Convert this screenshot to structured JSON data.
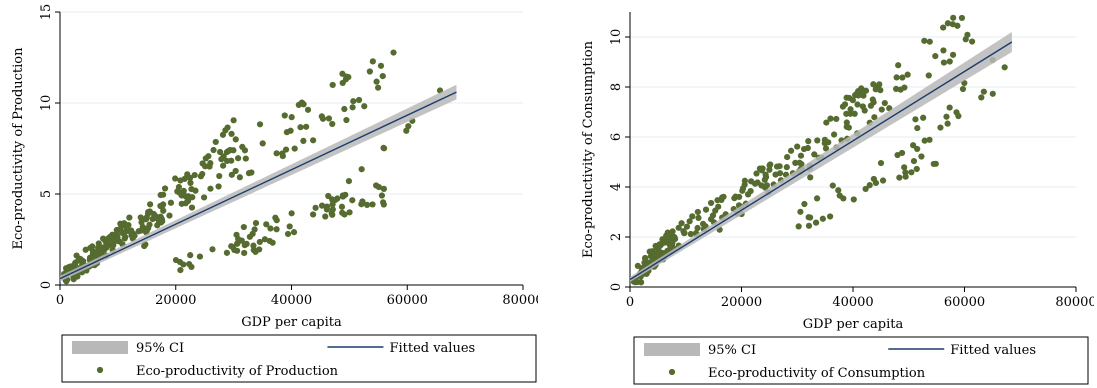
{
  "chart_data": [
    {
      "type": "scatter",
      "xlabel": "GDP per capita",
      "ylabel": "Eco-productivity of Production",
      "xlim": [
        0,
        80000
      ],
      "ylim": [
        0,
        15
      ],
      "x_ticks": [
        "0",
        "20000",
        "40000",
        "60000",
        "80000"
      ],
      "y_ticks": [
        "0",
        "5",
        "10",
        "15"
      ],
      "grid": true,
      "legend_position": "bottom",
      "legend": {
        "ci_label": "95% CI",
        "fit_label": "Fitted values",
        "scatter_label": "Eco-productivity of Production"
      },
      "fit": {
        "x": [
          0,
          68500
        ],
        "y": [
          0.35,
          10.6
        ]
      },
      "ci_band": {
        "x": [
          0,
          68500
        ],
        "upper": [
          0.5,
          11.0
        ],
        "lower": [
          0.2,
          10.2
        ]
      },
      "clusters": [
        {
          "x": [
            500,
            8000
          ],
          "y": [
            0.3,
            2.0
          ],
          "n": 70
        },
        {
          "x": [
            1000,
            12000
          ],
          "y": [
            0.8,
            3.2
          ],
          "n": 40
        },
        {
          "x": [
            8000,
            18000
          ],
          "y": [
            2.2,
            4.0
          ],
          "n": 45
        },
        {
          "x": [
            14000,
            30000
          ],
          "y": [
            3.0,
            8.0
          ],
          "n": 55
        },
        {
          "x": [
            22000,
            58000
          ],
          "y": [
            5.0,
            12.0
          ],
          "n": 70
        },
        {
          "x": [
            20000,
            38000
          ],
          "y": [
            1.1,
            2.5
          ],
          "n": 25
        },
        {
          "x": [
            30000,
            56000
          ],
          "y": [
            2.5,
            5.0
          ],
          "n": 45
        },
        {
          "x": [
            45000,
            68000
          ],
          "y": [
            4.0,
            10.3
          ],
          "n": 14
        }
      ],
      "colors": {
        "points": "#556b2f",
        "fit": "#1a3c6e",
        "ci": "#b8b8b8",
        "grid": "#e6eef3"
      }
    },
    {
      "type": "scatter",
      "xlabel": "GDP per capita",
      "ylabel": "Eco-productivity of Consumption",
      "xlim": [
        0,
        80000
      ],
      "ylim": [
        0,
        11
      ],
      "x_ticks": [
        "0",
        "20000",
        "40000",
        "60000",
        "80000"
      ],
      "y_ticks": [
        "0",
        "2",
        "4",
        "6",
        "8",
        "10"
      ],
      "grid": true,
      "legend_position": "bottom",
      "legend": {
        "ci_label": "95% CI",
        "fit_label": "Fitted values",
        "scatter_label": "Eco-productivity of Consumption"
      },
      "fit": {
        "x": [
          0,
          68500
        ],
        "y": [
          0.3,
          9.8
        ]
      },
      "ci_band": {
        "x": [
          0,
          68500
        ],
        "upper": [
          0.4,
          10.2
        ],
        "lower": [
          0.2,
          9.4
        ]
      },
      "clusters": [
        {
          "x": [
            500,
            8000
          ],
          "y": [
            0.3,
            2.0
          ],
          "n": 70
        },
        {
          "x": [
            4000,
            16000
          ],
          "y": [
            1.2,
            3.2
          ],
          "n": 50
        },
        {
          "x": [
            14000,
            32000
          ],
          "y": [
            2.5,
            5.5
          ],
          "n": 60
        },
        {
          "x": [
            30000,
            45000
          ],
          "y": [
            4.5,
            8.5
          ],
          "n": 45
        },
        {
          "x": [
            38000,
            62000
          ],
          "y": [
            6.5,
            10.7
          ],
          "n": 40
        },
        {
          "x": [
            30000,
            55000
          ],
          "y": [
            2.8,
            5.5
          ],
          "n": 35
        },
        {
          "x": [
            48000,
            68000
          ],
          "y": [
            5.5,
            9.0
          ],
          "n": 18
        }
      ],
      "colors": {
        "points": "#556b2f",
        "fit": "#1a3c6e",
        "ci": "#b8b8b8",
        "grid": "#e6eef3"
      }
    }
  ]
}
